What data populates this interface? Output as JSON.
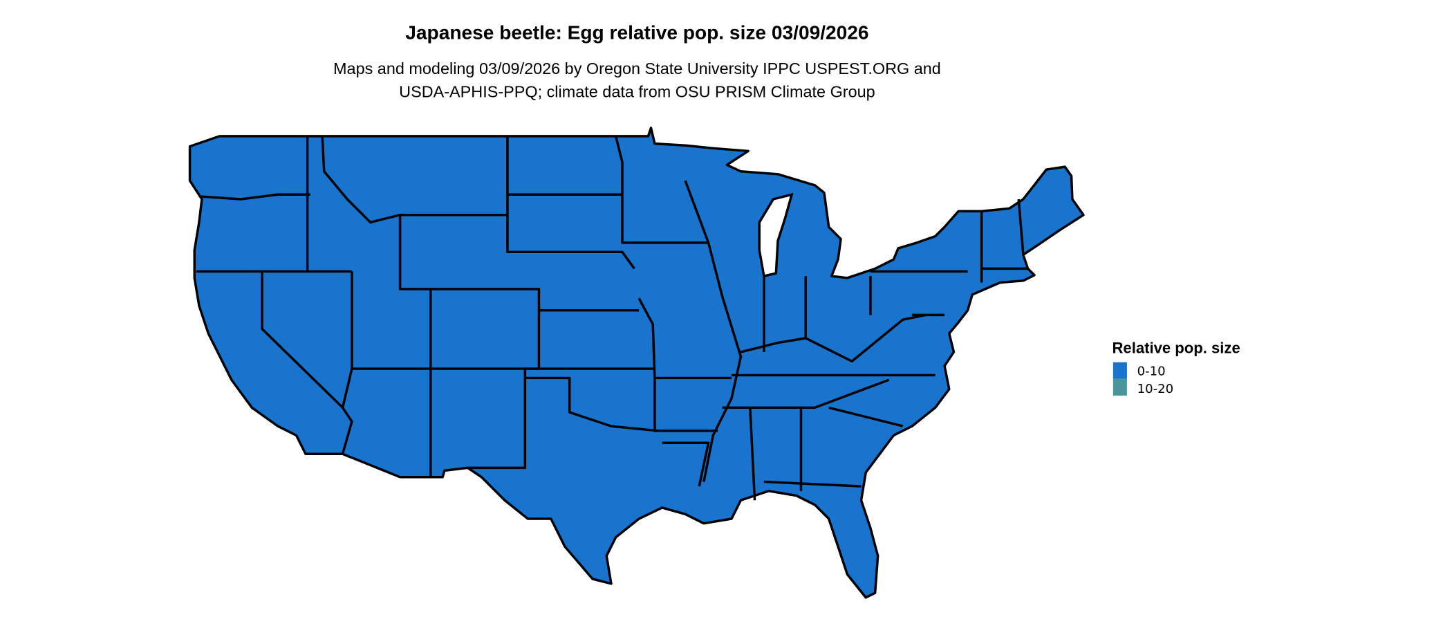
{
  "title": "Japanese beetle: Egg relative pop. size 03/09/2026",
  "subtitle": {
    "line1": "Maps and modeling 03/09/2026 by Oregon State University IPPC USPEST.ORG and",
    "line2": "USDA-APHIS-PPQ; climate data from OSU PRISM Climate Group"
  },
  "map": {
    "region": "conterminous United States",
    "fill_class": "0-10"
  },
  "legend": {
    "title": "Relative pop. size",
    "items": [
      {
        "label": "0-10",
        "color": "#1874CD"
      },
      {
        "label": "10-20",
        "color": "#4A949C"
      }
    ]
  },
  "colors": {
    "land": "#1874CD",
    "border": "#000000",
    "background": "#FFFFFF"
  }
}
